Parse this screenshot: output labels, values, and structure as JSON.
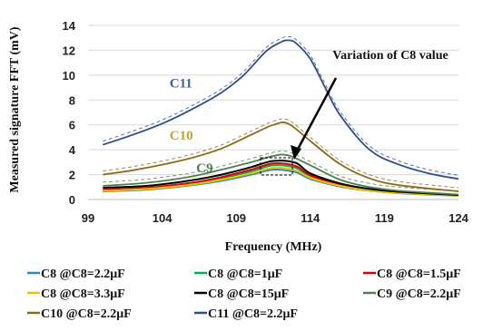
{
  "chart_data": {
    "type": "line",
    "xlabel": "Frequency (MHz)",
    "ylabel": "Measured signature FFT (mV)",
    "xlim": [
      99,
      124
    ],
    "ylim": [
      0,
      14
    ],
    "xticks": [
      99,
      104,
      109,
      114,
      119,
      124
    ],
    "yticks": [
      0,
      2,
      4,
      6,
      8,
      10,
      12,
      14
    ],
    "grid": "horizontal",
    "legend_position": "bottom",
    "annotations": [
      {
        "text": "C11",
        "x": 104.5,
        "y": 9.0,
        "color": "#3f5f9b"
      },
      {
        "text": "C10",
        "x": 104.5,
        "y": 4.8,
        "color": "#c9a227"
      },
      {
        "text": "C9",
        "x": 106.3,
        "y": 2.2,
        "color": "#4f7f4f"
      },
      {
        "text": "Variation of C8 value",
        "x": 115.5,
        "y": 11.3,
        "color": "#111111"
      }
    ],
    "series": [
      {
        "name": "C8 @C8=2.2μF",
        "color": "#2e86c1",
        "x": [
          100,
          103,
          106,
          108,
          110,
          111.5,
          113,
          114,
          116,
          118,
          120,
          124
        ],
        "y": [
          0.65,
          0.8,
          1.15,
          1.5,
          2.0,
          2.4,
          2.2,
          1.65,
          1.05,
          0.7,
          0.5,
          0.3
        ]
      },
      {
        "name": "C8 @C8=1μF",
        "color": "#00b050",
        "x": [
          100,
          103,
          106,
          108,
          110,
          111.5,
          113,
          114,
          116,
          118,
          120,
          124
        ],
        "y": [
          0.75,
          0.9,
          1.3,
          1.7,
          2.25,
          2.75,
          2.55,
          1.85,
          1.15,
          0.75,
          0.55,
          0.32
        ]
      },
      {
        "name": "C8 @C8=1.5μF",
        "color": "#e00000",
        "x": [
          100,
          103,
          106,
          108,
          110,
          111.5,
          113,
          114,
          116,
          118,
          120,
          124
        ],
        "y": [
          0.8,
          0.95,
          1.35,
          1.8,
          2.4,
          2.9,
          2.7,
          1.95,
          1.2,
          0.8,
          0.58,
          0.34
        ]
      },
      {
        "name": "C8 @C8=3.3μF",
        "color": "#f2c200",
        "x": [
          100,
          103,
          106,
          108,
          110,
          111.5,
          113,
          114,
          116,
          118,
          120,
          124
        ],
        "y": [
          0.7,
          0.85,
          1.2,
          1.6,
          2.1,
          2.55,
          2.35,
          1.75,
          1.1,
          0.72,
          0.52,
          0.31
        ]
      },
      {
        "name": "C8 @C8=15μF",
        "color": "#000000",
        "x": [
          100,
          103,
          106,
          108,
          110,
          111.5,
          113,
          114,
          116,
          118,
          120,
          124
        ],
        "y": [
          0.95,
          1.1,
          1.55,
          2.0,
          2.6,
          3.1,
          2.95,
          2.1,
          1.3,
          0.85,
          0.62,
          0.36
        ]
      },
      {
        "name": "C9 @C8=2.2μF",
        "color": "#4f7f4f",
        "x": [
          100,
          103,
          106,
          108,
          110,
          111.5,
          112.5,
          114,
          116,
          118,
          120,
          124
        ],
        "y": [
          1.1,
          1.35,
          1.85,
          2.4,
          3.0,
          3.5,
          3.55,
          2.75,
          1.6,
          1.0,
          0.7,
          0.4
        ]
      },
      {
        "name": "C10 @C8=2.2μF",
        "color": "#8b6b1a",
        "x": [
          100,
          102,
          104,
          106,
          108,
          110,
          111.5,
          112.5,
          114,
          116,
          118,
          120,
          124
        ],
        "y": [
          2.0,
          2.35,
          2.8,
          3.35,
          4.1,
          5.2,
          6.0,
          6.1,
          4.7,
          2.85,
          1.7,
          1.15,
          0.65
        ]
      },
      {
        "name": "C11 @C8=2.2μF",
        "color": "#2e4f86",
        "x": [
          100,
          102,
          104,
          106,
          108,
          109.5,
          111,
          112,
          112.5,
          113,
          114,
          115,
          116,
          118,
          120,
          122,
          124
        ],
        "y": [
          4.4,
          5.2,
          6.1,
          7.25,
          8.6,
          10.0,
          11.9,
          12.65,
          12.8,
          12.6,
          11.3,
          9.0,
          6.8,
          4.0,
          2.8,
          2.1,
          1.65
        ]
      }
    ]
  }
}
